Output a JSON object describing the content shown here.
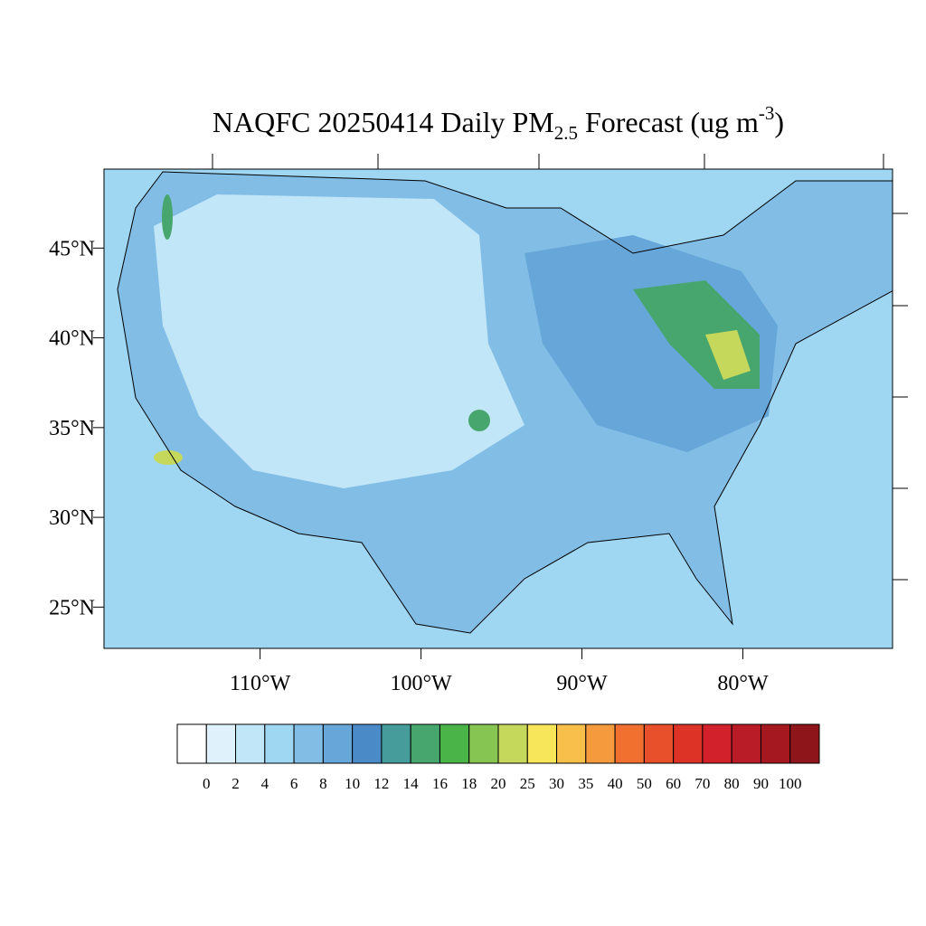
{
  "title": {
    "main": "NAQFC 20250414 Daily PM",
    "sub": "2.5",
    "mid": " Forecast (ug m",
    "sup": "-3",
    "end": ")"
  },
  "map": {
    "lon_range": [
      -119.7,
      -70.7
    ],
    "lat_range": [
      22.7,
      49.4
    ],
    "lat_ticks": [
      {
        "value": 45,
        "label": "45°N"
      },
      {
        "value": 40,
        "label": "40°N"
      },
      {
        "value": 35,
        "label": "35°N"
      },
      {
        "value": 30,
        "label": "30°N"
      },
      {
        "value": 25,
        "label": "25°N"
      }
    ],
    "lon_ticks": [
      {
        "value": -110,
        "label": "110°W"
      },
      {
        "value": -100,
        "label": "100°W"
      },
      {
        "value": -90,
        "label": "90°W"
      },
      {
        "value": -80,
        "label": "80°W"
      }
    ]
  },
  "colorbar": {
    "levels": [
      0,
      2,
      4,
      6,
      8,
      10,
      12,
      14,
      16,
      18,
      20,
      25,
      30,
      35,
      40,
      50,
      60,
      70,
      80,
      90,
      100
    ],
    "colors": [
      "#ffffff",
      "#dff2fb",
      "#c0e6f7",
      "#9fd6f2",
      "#82bde6",
      "#66a6d9",
      "#4a8ac7",
      "#469b9b",
      "#47a66d",
      "#4bb448",
      "#86c552",
      "#c6d85c",
      "#f7e65a",
      "#f8bf4a",
      "#f59a3d",
      "#f1702f",
      "#e8502c",
      "#dd3327",
      "#d2212b",
      "#b91c26",
      "#a5181f",
      "#8e1519"
    ]
  }
}
